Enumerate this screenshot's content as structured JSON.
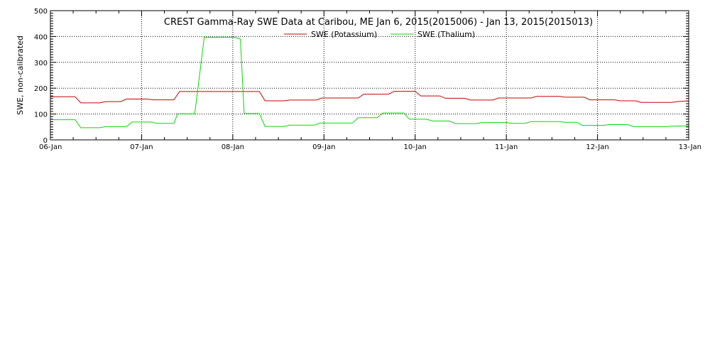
{
  "chart_data": {
    "type": "line",
    "title": "CREST Gamma-Ray SWE Data at Caribou, ME   Jan  6, 2015(2015006) - Jan 13, 2015(2015013)",
    "ylabel": "SWE, non-calibrated",
    "xlabel": "",
    "ylim": [
      0,
      500
    ],
    "yticks": [
      0,
      100,
      200,
      300,
      400,
      500
    ],
    "xlim": [
      "2015-01-06",
      "2015-01-13"
    ],
    "xticks": [
      {
        "date": "2015-01-06",
        "label": "06-Jan"
      },
      {
        "date": "2015-01-07",
        "label": "07-Jan"
      },
      {
        "date": "2015-01-08",
        "label": "08-Jan"
      },
      {
        "date": "2015-01-09",
        "label": "09-Jan"
      },
      {
        "date": "2015-01-10",
        "label": "10-Jan"
      },
      {
        "date": "2015-01-11",
        "label": "11-Jan"
      },
      {
        "date": "2015-01-12",
        "label": "12-Jan"
      },
      {
        "date": "2015-01-13",
        "label": "13-Jan"
      }
    ],
    "grid": true,
    "legend_position": "top-center",
    "series": [
      {
        "name": "SWE (Potassium)",
        "color": "#cc0000",
        "points": [
          [
            "2015-01-06 00:00",
            167
          ],
          [
            "2015-01-06 06:30",
            167
          ],
          [
            "2015-01-06 08:00",
            143
          ],
          [
            "2015-01-06 13:00",
            143
          ],
          [
            "2015-01-06 14:30",
            148
          ],
          [
            "2015-01-06 18:30",
            148
          ],
          [
            "2015-01-06 20:00",
            158
          ],
          [
            "2015-01-07 01:30",
            158
          ],
          [
            "2015-01-07 03:00",
            155
          ],
          [
            "2015-01-07 08:30",
            155
          ],
          [
            "2015-01-07 10:00",
            187
          ],
          [
            "2015-01-07 16:00",
            187
          ],
          [
            "2015-01-08 02:00",
            187
          ],
          [
            "2015-01-08 07:00",
            187
          ],
          [
            "2015-01-08 08:30",
            151
          ],
          [
            "2015-01-08 13:30",
            151
          ],
          [
            "2015-01-08 15:00",
            154
          ],
          [
            "2015-01-08 22:00",
            154
          ],
          [
            "2015-01-08 23:30",
            162
          ],
          [
            "2015-01-09 09:00",
            162
          ],
          [
            "2015-01-09 10:30",
            177
          ],
          [
            "2015-01-09 17:00",
            177
          ],
          [
            "2015-01-09 18:30",
            188
          ],
          [
            "2015-01-10 00:00",
            188
          ],
          [
            "2015-01-10 01:30",
            170
          ],
          [
            "2015-01-10 06:30",
            170
          ],
          [
            "2015-01-10 08:00",
            161
          ],
          [
            "2015-01-10 13:00",
            161
          ],
          [
            "2015-01-10 14:30",
            154
          ],
          [
            "2015-01-10 20:30",
            154
          ],
          [
            "2015-01-10 22:00",
            162
          ],
          [
            "2015-01-11 06:30",
            162
          ],
          [
            "2015-01-11 08:00",
            168
          ],
          [
            "2015-01-11 14:00",
            168
          ],
          [
            "2015-01-11 15:30",
            165
          ],
          [
            "2015-01-11 20:30",
            165
          ],
          [
            "2015-01-11 22:00",
            155
          ],
          [
            "2015-01-12 04:30",
            155
          ],
          [
            "2015-01-12 06:00",
            151
          ],
          [
            "2015-01-12 10:00",
            151
          ],
          [
            "2015-01-12 11:30",
            145
          ],
          [
            "2015-01-12 19:30",
            145
          ],
          [
            "2015-01-12 21:00",
            148
          ],
          [
            "2015-01-13 00:00",
            151
          ]
        ]
      },
      {
        "name": "SWE (Thalium)",
        "color": "#00dd00",
        "points": [
          [
            "2015-01-06 00:00",
            78
          ],
          [
            "2015-01-06 06:30",
            78
          ],
          [
            "2015-01-06 08:00",
            47
          ],
          [
            "2015-01-06 13:00",
            47
          ],
          [
            "2015-01-06 14:30",
            51
          ],
          [
            "2015-01-06 20:00",
            51
          ],
          [
            "2015-01-06 21:30",
            69
          ],
          [
            "2015-01-07 02:30",
            69
          ],
          [
            "2015-01-07 04:00",
            64
          ],
          [
            "2015-01-07 08:30",
            64
          ],
          [
            "2015-01-07 09:30",
            101
          ],
          [
            "2015-01-07 14:00",
            101
          ],
          [
            "2015-01-07 16:30",
            397
          ],
          [
            "2015-01-08 00:30",
            397
          ],
          [
            "2015-01-08 02:00",
            390
          ],
          [
            "2015-01-08 03:00",
            102
          ],
          [
            "2015-01-08 07:00",
            102
          ],
          [
            "2015-01-08 08:30",
            52
          ],
          [
            "2015-01-08 13:30",
            52
          ],
          [
            "2015-01-08 15:00",
            57
          ],
          [
            "2015-01-08 21:30",
            57
          ],
          [
            "2015-01-08 23:00",
            65
          ],
          [
            "2015-01-09 07:30",
            65
          ],
          [
            "2015-01-09 09:00",
            86
          ],
          [
            "2015-01-09 14:00",
            86
          ],
          [
            "2015-01-09 15:30",
            104
          ],
          [
            "2015-01-09 21:00",
            104
          ],
          [
            "2015-01-09 22:30",
            80
          ],
          [
            "2015-01-10 03:00",
            80
          ],
          [
            "2015-01-10 04:30",
            73
          ],
          [
            "2015-01-10 09:00",
            73
          ],
          [
            "2015-01-10 10:30",
            63
          ],
          [
            "2015-01-10 16:00",
            63
          ],
          [
            "2015-01-10 17:30",
            67
          ],
          [
            "2015-01-11 00:00",
            67
          ],
          [
            "2015-01-11 01:30",
            64
          ],
          [
            "2015-01-11 05:00",
            64
          ],
          [
            "2015-01-11 06:30",
            71
          ],
          [
            "2015-01-11 14:00",
            71
          ],
          [
            "2015-01-11 15:30",
            68
          ],
          [
            "2015-01-11 18:30",
            68
          ],
          [
            "2015-01-11 20:00",
            56
          ],
          [
            "2015-01-12 01:30",
            56
          ],
          [
            "2015-01-12 03:00",
            59
          ],
          [
            "2015-01-12 08:00",
            59
          ],
          [
            "2015-01-12 09:30",
            51
          ],
          [
            "2015-01-12 18:00",
            51
          ],
          [
            "2015-01-12 19:30",
            53
          ],
          [
            "2015-01-13 00:00",
            54
          ]
        ]
      }
    ]
  }
}
